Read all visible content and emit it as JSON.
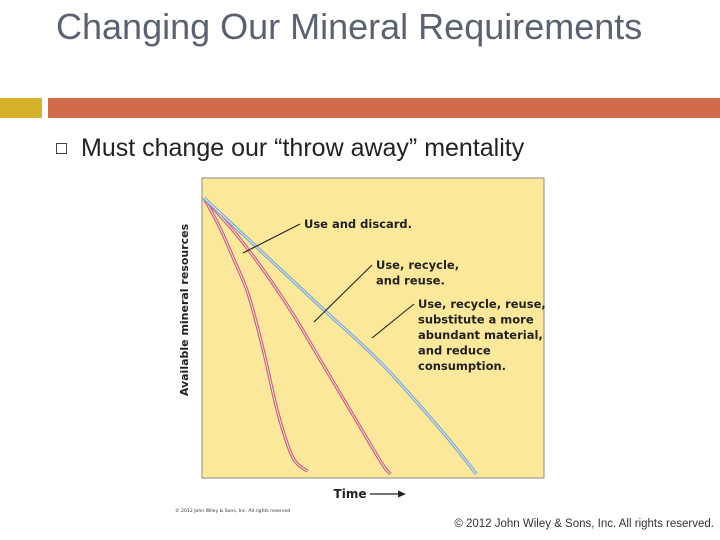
{
  "slide": {
    "title": "Changing Our Mineral Requirements",
    "bullet": "Must change our “throw away” mentality",
    "footer": "© 2012 John Wiley & Sons, Inc. All rights reserved."
  },
  "colors": {
    "accent_gold": "#d6b22a",
    "accent_orange": "#cf6a4b",
    "plot_background": "#fbe89a",
    "curve_pink": "#c9607a",
    "curve_blue": "#7aa6c9"
  },
  "chart_data": {
    "type": "line",
    "xlabel": "Time",
    "ylabel": "Available mineral resources",
    "xlim": [
      0,
      10
    ],
    "ylim": [
      0,
      10
    ],
    "grid": false,
    "credit": "© 2012 John Wiley & Sons, Inc. All rights reserved",
    "series": [
      {
        "name": "Use and discard.",
        "color": "#c9607a",
        "x": [
          0,
          0.5,
          1.0,
          1.5,
          2.0,
          2.5,
          3.0,
          3.5
        ],
        "y": [
          10,
          9.0,
          7.8,
          6.5,
          4.5,
          2.2,
          0.6,
          0.1
        ]
      },
      {
        "name": "Use, recycle, and reuse.",
        "color": "#c9607a",
        "x": [
          0,
          1,
          2,
          3,
          4,
          5,
          6,
          6.3
        ],
        "y": [
          10,
          8.8,
          7.4,
          5.8,
          4.0,
          2.2,
          0.4,
          0.0
        ]
      },
      {
        "name": "Use, recycle, reuse, substitute a more abundant material, and reduce consumption.",
        "color": "#7aa6c9",
        "x": [
          0,
          2,
          4,
          6,
          8,
          9.2
        ],
        "y": [
          10,
          8.0,
          6.0,
          4.0,
          1.6,
          0.0
        ]
      }
    ],
    "annotations": [
      {
        "lines": [
          "Use and discard."
        ]
      },
      {
        "lines": [
          "Use, recycle,",
          "and reuse."
        ]
      },
      {
        "lines": [
          "Use, recycle, reuse,",
          "substitute a more",
          "abundant material,",
          "and reduce",
          "consumption."
        ]
      }
    ]
  }
}
